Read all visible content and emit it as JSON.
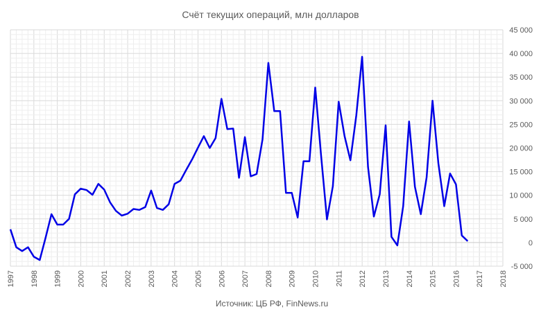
{
  "chart_data": {
    "type": "line",
    "title": "Счёт текущих операций, млн долларов",
    "source": "Источник: ЦБ РФ, FinNews.ru",
    "xlabel": "",
    "ylabel": "",
    "xlim": [
      1997,
      2018
    ],
    "ylim": [
      -5000,
      45000
    ],
    "grid": true,
    "legend": "none",
    "y_axis_side": "right",
    "line_color": "#0000e6",
    "x_ticks": [
      "1997",
      "1998",
      "1999",
      "2000",
      "2001",
      "2002",
      "2003",
      "2004",
      "2005",
      "2006",
      "2007",
      "2008",
      "2009",
      "2010",
      "2011",
      "2012",
      "2013",
      "2014",
      "2015",
      "2016",
      "2017",
      "2018"
    ],
    "y_ticks": [
      "-5 000",
      "0",
      "5 000",
      "10 000",
      "15 000",
      "20 000",
      "25 000",
      "30 000",
      "35 000",
      "40 000",
      "45 000"
    ],
    "x": [
      1997.0,
      1997.25,
      1997.5,
      1997.75,
      1998.0,
      1998.25,
      1998.5,
      1998.75,
      1999.0,
      1999.25,
      1999.5,
      1999.75,
      2000.0,
      2000.25,
      2000.5,
      2000.75,
      2001.0,
      2001.25,
      2001.5,
      2001.75,
      2002.0,
      2002.25,
      2002.5,
      2002.75,
      2003.0,
      2003.25,
      2003.5,
      2003.75,
      2004.0,
      2004.25,
      2004.5,
      2004.75,
      2005.0,
      2005.25,
      2005.5,
      2005.75,
      2006.0,
      2006.25,
      2006.5,
      2006.75,
      2007.0,
      2007.25,
      2007.5,
      2007.75,
      2008.0,
      2008.25,
      2008.5,
      2008.75,
      2009.0,
      2009.25,
      2009.5,
      2009.75,
      2010.0,
      2010.25,
      2010.5,
      2010.75,
      2011.0,
      2011.25,
      2011.5,
      2011.75,
      2012.0,
      2012.25,
      2012.5,
      2012.75,
      2013.0,
      2013.25,
      2013.5,
      2013.75,
      2014.0,
      2014.25,
      2014.5,
      2014.75,
      2015.0,
      2015.25,
      2015.5,
      2015.75,
      2016.0,
      2016.25,
      2016.5,
      2016.75
    ],
    "values": [
      2800,
      -1000,
      -1800,
      -1000,
      -3000,
      -3700,
      1000,
      6000,
      3800,
      3800,
      5000,
      10200,
      11400,
      11100,
      10100,
      12400,
      11200,
      8500,
      6700,
      5700,
      6100,
      7100,
      6900,
      7500,
      11000,
      7300,
      6900,
      8100,
      12400,
      13100,
      15400,
      17600,
      20100,
      22500,
      20000,
      22100,
      30400,
      24000,
      24100,
      13700,
      22300,
      14000,
      14500,
      21800,
      38000,
      27800,
      27800,
      10500,
      10500,
      5300,
      17200,
      17200,
      32800,
      18300,
      4900,
      11900,
      29800,
      22500,
      17400,
      26900,
      39300,
      16000,
      5500,
      10200,
      24800,
      1200,
      -600,
      7700,
      25600,
      11800,
      6000,
      13800,
      30000,
      16800,
      7700,
      14600,
      12300,
      1500,
      300,
      null
    ]
  }
}
